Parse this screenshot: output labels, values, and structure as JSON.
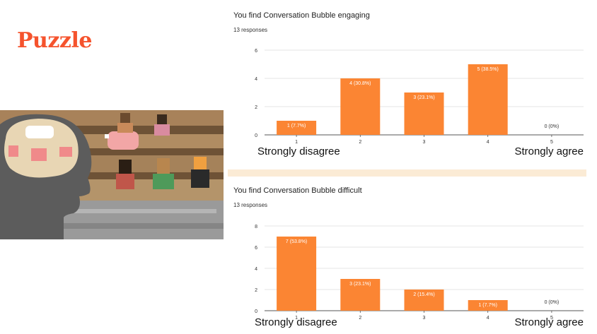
{
  "heading": "Puzzle",
  "accent_color": "#f5532d",
  "bar_color": "#fb8533",
  "chart_data": [
    {
      "type": "bar",
      "title": "You find Conversation Bubble engaging",
      "subtitle": "13 responses",
      "categories": [
        "1",
        "2",
        "3",
        "4",
        "5"
      ],
      "values": [
        1,
        4,
        3,
        5,
        0
      ],
      "data_labels": [
        "1 (7.7%)",
        "4 (30.8%)",
        "3 (23.1%)",
        "5 (38.5%)",
        "0 (0%)"
      ],
      "yticks": [
        0,
        2,
        4,
        6
      ],
      "ylim": [
        0,
        6
      ],
      "grid": true,
      "scale_low_label": "Strongly disagree",
      "scale_high_label": "Strongly agree"
    },
    {
      "type": "bar",
      "title": "You find Conversation Bubble difficult",
      "subtitle": "13 responses",
      "categories": [
        "1",
        "2",
        "3",
        "4",
        "5"
      ],
      "values": [
        7,
        3,
        2,
        1,
        0
      ],
      "data_labels": [
        "7 (53.8%)",
        "3 (23.1%)",
        "2 (15.4%)",
        "1 (7.7%)",
        "0 (0%)"
      ],
      "yticks": [
        0,
        2,
        4,
        6,
        8
      ],
      "ylim": [
        0,
        8
      ],
      "grid": true,
      "scale_low_label": "Strongly disagree",
      "scale_high_label": "Strongly agree"
    }
  ]
}
